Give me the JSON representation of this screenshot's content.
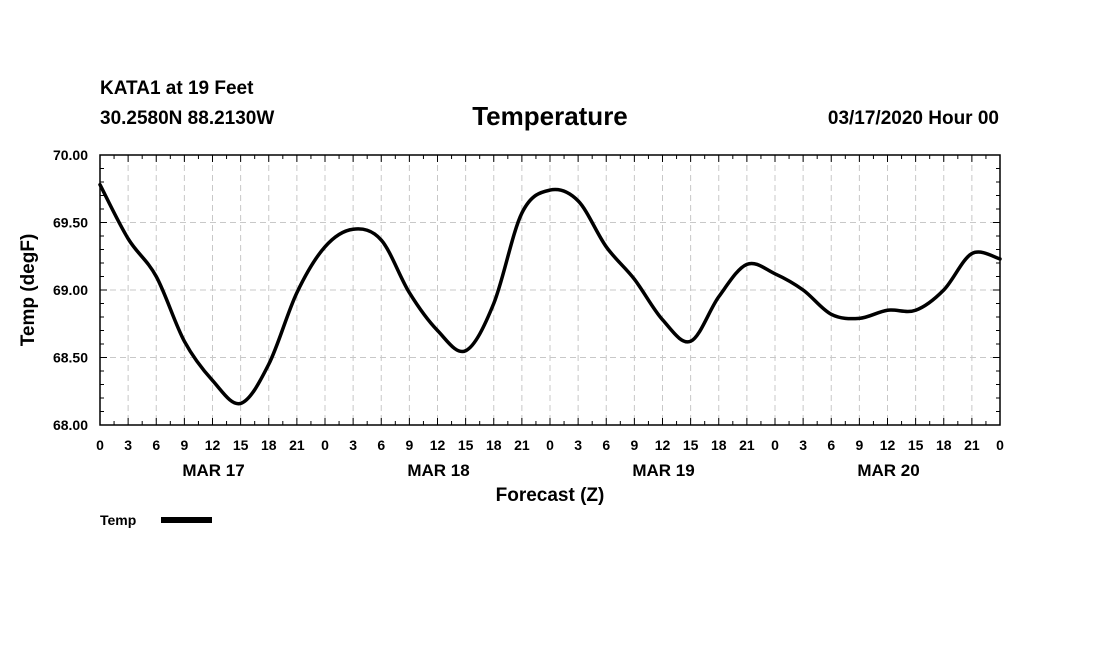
{
  "header": {
    "station": "KATA1 at 19 Feet",
    "coords": "30.2580N 88.2130W",
    "title": "Temperature",
    "datetime": "03/17/2020 Hour 00"
  },
  "chart_data": {
    "type": "line",
    "title": "Temperature",
    "xlabel": "Forecast (Z)",
    "ylabel": "Temp (degF)",
    "ylim": [
      68.0,
      70.0
    ],
    "xlim": [
      0,
      96
    ],
    "x_unit": "hours from 03/17/2020 00Z",
    "grid": true,
    "y_ticks": [
      "68.00",
      "68.50",
      "69.00",
      "69.50",
      "70.00"
    ],
    "x_tick_labels": [
      "0",
      "3",
      "6",
      "9",
      "12",
      "15",
      "18",
      "21",
      "0",
      "3",
      "6",
      "9",
      "12",
      "15",
      "18",
      "21",
      "0",
      "3",
      "6",
      "9",
      "12",
      "15",
      "18",
      "21",
      "0",
      "3",
      "6",
      "9",
      "12",
      "15",
      "18",
      "21",
      "0"
    ],
    "day_labels": [
      "MAR 17",
      "MAR 18",
      "MAR 19",
      "MAR 20"
    ],
    "legend": {
      "label": "Temp",
      "position": "bottom-left"
    },
    "series": [
      {
        "name": "Temp",
        "color": "#000000",
        "x": [
          0,
          3,
          6,
          9,
          12,
          15,
          18,
          21,
          24,
          27,
          30,
          33,
          36,
          39,
          42,
          45,
          48,
          51,
          54,
          57,
          60,
          63,
          66,
          69,
          72,
          75,
          78,
          81,
          84,
          87,
          90,
          93,
          96
        ],
        "values": [
          69.78,
          69.38,
          69.1,
          68.62,
          68.33,
          68.16,
          68.45,
          68.98,
          69.32,
          69.45,
          69.37,
          68.98,
          68.7,
          68.55,
          68.9,
          69.57,
          69.74,
          69.66,
          69.32,
          69.08,
          68.78,
          68.62,
          68.95,
          69.19,
          69.12,
          69.0,
          68.82,
          68.79,
          68.85,
          68.85,
          69.0,
          69.27,
          69.23
        ]
      }
    ]
  }
}
